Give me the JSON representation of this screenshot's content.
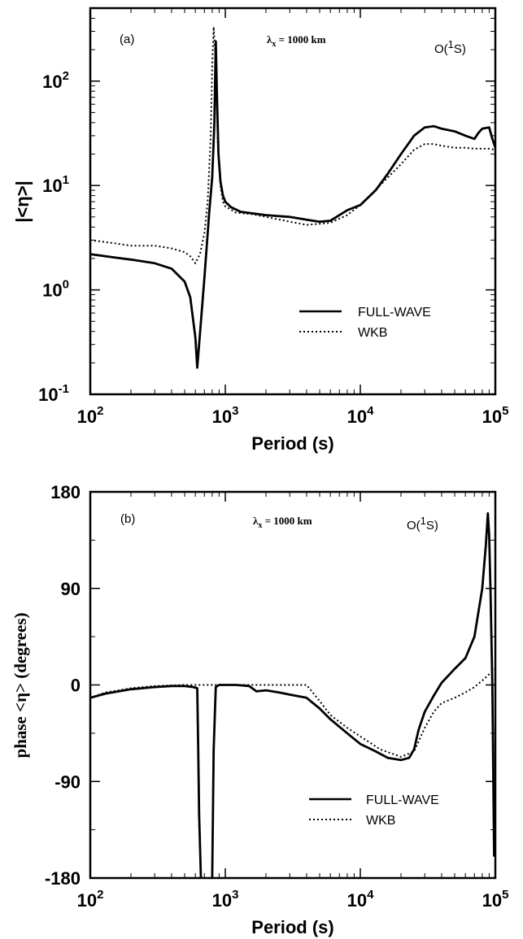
{
  "chart_data": [
    {
      "panel": "(a)",
      "type": "line",
      "annotation_lambda": "λ",
      "annotation_lambda_sub": "x",
      "annotation_lambda_value": " = 1000 km",
      "annotation_species_pre": "O(",
      "annotation_species_sup": "1",
      "annotation_species_post": "S)",
      "xlabel": "Period (s)",
      "ylabel": "|<η>|",
      "xscale": "log",
      "yscale": "log",
      "xlim": [
        100,
        100000
      ],
      "ylim": [
        0.1,
        500
      ],
      "xticks": [
        {
          "value": 100,
          "base": "10",
          "exp": "2"
        },
        {
          "value": 1000,
          "base": "10",
          "exp": "3"
        },
        {
          "value": 10000,
          "base": "10",
          "exp": "4"
        },
        {
          "value": 100000,
          "base": "10",
          "exp": "5"
        }
      ],
      "yticks": [
        {
          "value": 0.1,
          "base": "10",
          "exp": "-1"
        },
        {
          "value": 1,
          "base": "10",
          "exp": "0"
        },
        {
          "value": 10,
          "base": "10",
          "exp": "1"
        },
        {
          "value": 100,
          "base": "10",
          "exp": "2"
        }
      ],
      "legend": {
        "position": "lower-right"
      },
      "series": [
        {
          "name": "FULL-WAVE",
          "style": "solid",
          "x": [
            100,
            150,
            200,
            300,
            400,
            500,
            550,
            600,
            620,
            640,
            700,
            760,
            800,
            830,
            850,
            870,
            890,
            920,
            960,
            1000,
            1100,
            1300,
            1600,
            2000,
            3000,
            4000,
            5000,
            6000,
            7000,
            8000,
            10000,
            13000,
            16000,
            20000,
            25000,
            30000,
            35000,
            40000,
            50000,
            60000,
            70000,
            75000,
            80000,
            90000,
            95000,
            100000
          ],
          "y": [
            2.2,
            2.05,
            1.95,
            1.8,
            1.6,
            1.2,
            0.85,
            0.35,
            0.18,
            0.3,
            1.3,
            5.5,
            12,
            40,
            240,
            60,
            20,
            11,
            8,
            7,
            6.2,
            5.6,
            5.4,
            5.2,
            5.0,
            4.7,
            4.5,
            4.6,
            5.2,
            5.8,
            6.5,
            9,
            13,
            20,
            30,
            36,
            37,
            35,
            33,
            30,
            28,
            32,
            35,
            36,
            28,
            23
          ]
        },
        {
          "name": "WKB",
          "style": "dotted",
          "x": [
            100,
            150,
            200,
            300,
            400,
            500,
            550,
            600,
            650,
            700,
            740,
            780,
            800,
            820,
            850,
            880,
            920,
            960,
            1000,
            1200,
            1600,
            2000,
            3000,
            4000,
            5000,
            6000,
            8000,
            10000,
            15000,
            20000,
            25000,
            30000,
            35000,
            40000,
            50000,
            60000,
            70000,
            80000,
            90000,
            100000
          ],
          "y": [
            3.0,
            2.8,
            2.65,
            2.65,
            2.5,
            2.3,
            2.1,
            1.8,
            2.2,
            3.5,
            7,
            30,
            140,
            330,
            150,
            25,
            10,
            7,
            6.3,
            5.5,
            5.3,
            5.0,
            4.5,
            4.2,
            4.3,
            4.4,
            5.2,
            6.5,
            11,
            16,
            22,
            25,
            25,
            24,
            23,
            23,
            22.5,
            22.5,
            22.5,
            22
          ]
        }
      ]
    },
    {
      "panel": "(b)",
      "type": "line",
      "annotation_lambda": "λ",
      "annotation_lambda_sub": "x",
      "annotation_lambda_value": " = 1000 km",
      "annotation_species_pre": "O(",
      "annotation_species_sup": "1",
      "annotation_species_post": "S)",
      "xlabel": "Period (s)",
      "ylabel": "phase <η> (degrees)",
      "xscale": "log",
      "yscale": "linear",
      "xlim": [
        100,
        100000
      ],
      "ylim": [
        -180,
        180
      ],
      "xticks": [
        {
          "value": 100,
          "base": "10",
          "exp": "2"
        },
        {
          "value": 1000,
          "base": "10",
          "exp": "3"
        },
        {
          "value": 10000,
          "base": "10",
          "exp": "4"
        },
        {
          "value": 100000,
          "base": "10",
          "exp": "5"
        }
      ],
      "yticks": [
        {
          "value": 180,
          "label": "180"
        },
        {
          "value": 90,
          "label": "90"
        },
        {
          "value": 0,
          "label": "0"
        },
        {
          "value": -90,
          "label": "-90"
        },
        {
          "value": -180,
          "label": "-180"
        }
      ],
      "legend": {
        "position": "lower-right"
      },
      "series": [
        {
          "name": "FULL-WAVE",
          "style": "solid",
          "segments": [
            {
              "x": [
                100,
                130,
                200,
                300,
                400,
                500,
                580,
                620,
                630,
                640,
                660
              ],
              "y": [
                -12,
                -8,
                -4,
                -2,
                -1,
                -1,
                -2,
                -3,
                -60,
                -120,
                -180
              ]
            },
            {
              "x": [
                800,
                810,
                820,
                850,
                900,
                1000,
                1200,
                1500,
                1700,
                2000,
                2500,
                3000,
                4000,
                5000,
                6000,
                8000,
                10000,
                13000,
                16000,
                20000,
                23000,
                25000,
                27000,
                30000,
                35000,
                40000,
                50000,
                60000,
                70000,
                80000,
                85000,
                88000,
                90000,
                92000,
                95000,
                98000
              ],
              "y": [
                -180,
                -120,
                -60,
                -2,
                0,
                0,
                0,
                -1,
                -6,
                -5,
                -7,
                -9,
                -12,
                -22,
                -32,
                -45,
                -55,
                -62,
                -68,
                -70,
                -68,
                -60,
                -42,
                -25,
                -10,
                2,
                15,
                25,
                45,
                90,
                130,
                160,
                140,
                90,
                0,
                -160
              ]
            }
          ]
        },
        {
          "name": "WKB",
          "style": "dotted",
          "x": [
            100,
            130,
            200,
            300,
            500,
            700,
            1000,
            2000,
            3000,
            4000,
            5000,
            6000,
            8000,
            10000,
            14000,
            20000,
            25000,
            30000,
            35000,
            40000,
            50000,
            60000,
            70000,
            80000,
            90000,
            100000
          ],
          "y": [
            -12,
            -7,
            -3,
            -1,
            0,
            0,
            0,
            0,
            0,
            0,
            -15,
            -28,
            -40,
            -48,
            -60,
            -67,
            -62,
            -40,
            -25,
            -17,
            -12,
            -7,
            -2,
            4,
            10,
            15
          ]
        }
      ]
    }
  ]
}
